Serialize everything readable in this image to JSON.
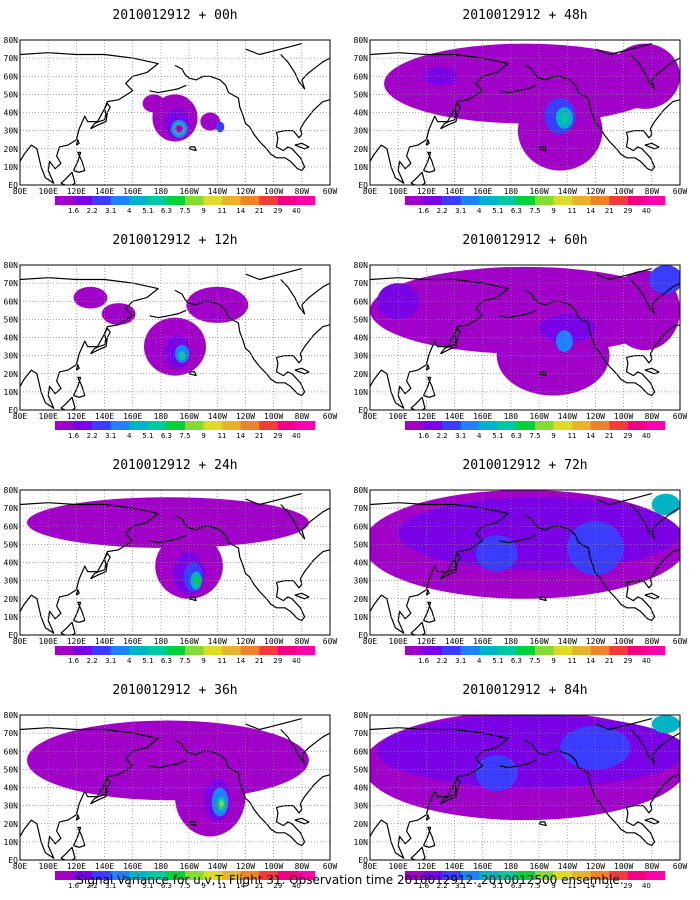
{
  "caption": "Signal Variance for u,v,T. Flight 31. Observation time 2010012912. 2010012500 ensemble.",
  "chart_data": {
    "type": "heatmap",
    "field": "Signal Variance for u,v,T",
    "flight": "31",
    "observation_time": "2010012912",
    "ensemble": "2010012500",
    "x_tick_labels": [
      "80E",
      "100E",
      "120E",
      "140E",
      "160E",
      "180",
      "160W",
      "140W",
      "120W",
      "100W",
      "80W",
      "60W"
    ],
    "y_tick_labels": [
      "EQ",
      "10N",
      "20N",
      "30N",
      "40N",
      "50N",
      "60N",
      "70N",
      "80N"
    ],
    "lon_range_deg_east": [
      80,
      300
    ],
    "lat_range_deg": [
      0,
      80
    ],
    "grid": true,
    "legend_placement": "bottom",
    "colorbar_labels": [
      "1.6",
      "2.2",
      "3.1",
      "4",
      "5.1",
      "6.3",
      "7.5",
      "9",
      "11",
      "14",
      "21",
      "29",
      "40"
    ],
    "colorbar_colors": [
      "#a000c8",
      "#7a00e6",
      "#3c3cff",
      "#1e82ff",
      "#00b4c8",
      "#00c8a0",
      "#00d23c",
      "#82dc32",
      "#dcdc28",
      "#e6b428",
      "#f08228",
      "#f03c3c",
      "#f00082",
      "#ff00aa"
    ],
    "panels": [
      {
        "title": "2010012912 + 00h",
        "lead_hours": 0,
        "blobs": [
          {
            "lon": 190,
            "lat": 37,
            "rx": 16,
            "ry": 13,
            "level": 0
          },
          {
            "lon": 175,
            "lat": 45,
            "rx": 8,
            "ry": 5,
            "level": 0
          },
          {
            "lon": 215,
            "lat": 35,
            "rx": 7,
            "ry": 5,
            "level": 0
          },
          {
            "lon": 192,
            "lat": 34,
            "rx": 9,
            "ry": 8,
            "level": 1
          },
          {
            "lon": 222,
            "lat": 32,
            "rx": 3,
            "ry": 3,
            "level": 2
          },
          {
            "lon": 193,
            "lat": 31,
            "rx": 6,
            "ry": 5,
            "level": 3
          },
          {
            "lon": 193,
            "lat": 31,
            "rx": 4,
            "ry": 3.5,
            "level": 5
          },
          {
            "lon": 193,
            "lat": 31,
            "rx": 2.8,
            "ry": 2.4,
            "level": 13
          },
          {
            "lon": 193,
            "lat": 31,
            "rx": 1.8,
            "ry": 1.5,
            "level": 1
          }
        ]
      },
      {
        "title": "2010012912 + 48h",
        "lead_hours": 48,
        "blobs": [
          {
            "lon": 190,
            "lat": 56,
            "rx": 100,
            "ry": 22,
            "level": 0
          },
          {
            "lon": 215,
            "lat": 30,
            "rx": 30,
            "ry": 22,
            "level": 0
          },
          {
            "lon": 275,
            "lat": 60,
            "rx": 25,
            "ry": 18,
            "level": 0
          },
          {
            "lon": 130,
            "lat": 60,
            "rx": 12,
            "ry": 5,
            "level": 1
          },
          {
            "lon": 215,
            "lat": 38,
            "rx": 11,
            "ry": 10,
            "level": 2
          },
          {
            "lon": 218,
            "lat": 37,
            "rx": 6,
            "ry": 6,
            "level": 4
          },
          {
            "lon": 218,
            "lat": 37,
            "rx": 2.5,
            "ry": 2.5,
            "level": 5
          }
        ]
      },
      {
        "title": "2010012912 + 12h",
        "lead_hours": 12,
        "blobs": [
          {
            "lon": 190,
            "lat": 35,
            "rx": 22,
            "ry": 16,
            "level": 0
          },
          {
            "lon": 220,
            "lat": 58,
            "rx": 22,
            "ry": 10,
            "level": 0
          },
          {
            "lon": 130,
            "lat": 62,
            "rx": 12,
            "ry": 6,
            "level": 0
          },
          {
            "lon": 150,
            "lat": 53,
            "rx": 12,
            "ry": 6,
            "level": 0
          },
          {
            "lon": 192,
            "lat": 32,
            "rx": 9,
            "ry": 9,
            "level": 1
          },
          {
            "lon": 195,
            "lat": 31,
            "rx": 5,
            "ry": 5,
            "level": 3
          },
          {
            "lon": 195,
            "lat": 30,
            "rx": 2.5,
            "ry": 2.5,
            "level": 5
          }
        ]
      },
      {
        "title": "2010012912 + 60h",
        "lead_hours": 60,
        "blobs": [
          {
            "lon": 190,
            "lat": 55,
            "rx": 110,
            "ry": 24,
            "level": 0
          },
          {
            "lon": 210,
            "lat": 30,
            "rx": 40,
            "ry": 22,
            "level": 0
          },
          {
            "lon": 275,
            "lat": 55,
            "rx": 25,
            "ry": 22,
            "level": 0
          },
          {
            "lon": 100,
            "lat": 60,
            "rx": 15,
            "ry": 10,
            "level": 1
          },
          {
            "lon": 220,
            "lat": 45,
            "rx": 20,
            "ry": 8,
            "level": 1
          },
          {
            "lon": 290,
            "lat": 72,
            "rx": 12,
            "ry": 8,
            "level": 2
          },
          {
            "lon": 218,
            "lat": 38,
            "rx": 6,
            "ry": 6,
            "level": 3
          }
        ]
      },
      {
        "title": "2010012912 + 24h",
        "lead_hours": 24,
        "blobs": [
          {
            "lon": 185,
            "lat": 62,
            "rx": 100,
            "ry": 14,
            "level": 0
          },
          {
            "lon": 200,
            "lat": 38,
            "rx": 24,
            "ry": 18,
            "level": 0
          },
          {
            "lon": 200,
            "lat": 34,
            "rx": 11,
            "ry": 12,
            "level": 1
          },
          {
            "lon": 203,
            "lat": 32,
            "rx": 7,
            "ry": 8,
            "level": 2
          },
          {
            "lon": 205,
            "lat": 30,
            "rx": 4,
            "ry": 5,
            "level": 4
          },
          {
            "lon": 206,
            "lat": 30,
            "rx": 2,
            "ry": 2.5,
            "level": 6
          }
        ]
      },
      {
        "title": "2010012912 + 72h",
        "lead_hours": 72,
        "blobs": [
          {
            "lon": 190,
            "lat": 50,
            "rx": 115,
            "ry": 30,
            "level": 0
          },
          {
            "lon": 200,
            "lat": 56,
            "rx": 100,
            "ry": 20,
            "level": 1
          },
          {
            "lon": 240,
            "lat": 48,
            "rx": 20,
            "ry": 15,
            "level": 2
          },
          {
            "lon": 170,
            "lat": 45,
            "rx": 15,
            "ry": 10,
            "level": 2
          },
          {
            "lon": 290,
            "lat": 72,
            "rx": 10,
            "ry": 6,
            "level": 4
          }
        ]
      },
      {
        "title": "2010012912 + 36h",
        "lead_hours": 36,
        "blobs": [
          {
            "lon": 185,
            "lat": 55,
            "rx": 100,
            "ry": 22,
            "level": 0
          },
          {
            "lon": 215,
            "lat": 35,
            "rx": 25,
            "ry": 22,
            "level": 0
          },
          {
            "lon": 220,
            "lat": 33,
            "rx": 9,
            "ry": 12,
            "level": 1
          },
          {
            "lon": 222,
            "lat": 32,
            "rx": 6,
            "ry": 8,
            "level": 3
          },
          {
            "lon": 223,
            "lat": 31,
            "rx": 3,
            "ry": 4,
            "level": 5
          },
          {
            "lon": 223,
            "lat": 31,
            "rx": 1.5,
            "ry": 2,
            "level": 7
          }
        ]
      },
      {
        "title": "2010012912 + 84h",
        "lead_hours": 84,
        "blobs": [
          {
            "lon": 190,
            "lat": 52,
            "rx": 115,
            "ry": 30,
            "level": 0
          },
          {
            "lon": 195,
            "lat": 60,
            "rx": 110,
            "ry": 20,
            "level": 1
          },
          {
            "lon": 240,
            "lat": 62,
            "rx": 25,
            "ry": 12,
            "level": 2
          },
          {
            "lon": 170,
            "lat": 48,
            "rx": 15,
            "ry": 10,
            "level": 2
          },
          {
            "lon": 290,
            "lat": 75,
            "rx": 10,
            "ry": 5,
            "level": 4
          }
        ]
      }
    ]
  }
}
